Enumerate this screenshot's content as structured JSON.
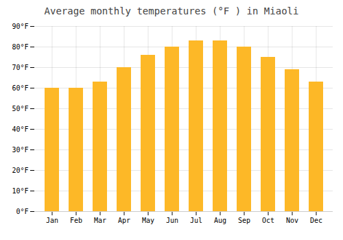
{
  "chart_data": {
    "type": "bar",
    "title": "Average monthly temperatures (°F ) in Miaoli",
    "categories": [
      "Jan",
      "Feb",
      "Mar",
      "Apr",
      "May",
      "Jun",
      "Jul",
      "Aug",
      "Sep",
      "Oct",
      "Nov",
      "Dec"
    ],
    "values": [
      60,
      60,
      63,
      70,
      76,
      80,
      83,
      83,
      80,
      75,
      69,
      63
    ],
    "color": "#FDB827",
    "ylim": [
      0,
      90
    ],
    "yticks": [
      {
        "value": 0,
        "label": "0°F"
      },
      {
        "value": 10,
        "label": "10°F"
      },
      {
        "value": 20,
        "label": "20°F"
      },
      {
        "value": 30,
        "label": "30°F"
      },
      {
        "value": 40,
        "label": "40°F"
      },
      {
        "value": 50,
        "label": "50°F"
      },
      {
        "value": 60,
        "label": "60°F"
      },
      {
        "value": 70,
        "label": "70°F"
      },
      {
        "value": 80,
        "label": "80°F"
      },
      {
        "value": 90,
        "label": "90°F"
      }
    ],
    "grid": true
  }
}
